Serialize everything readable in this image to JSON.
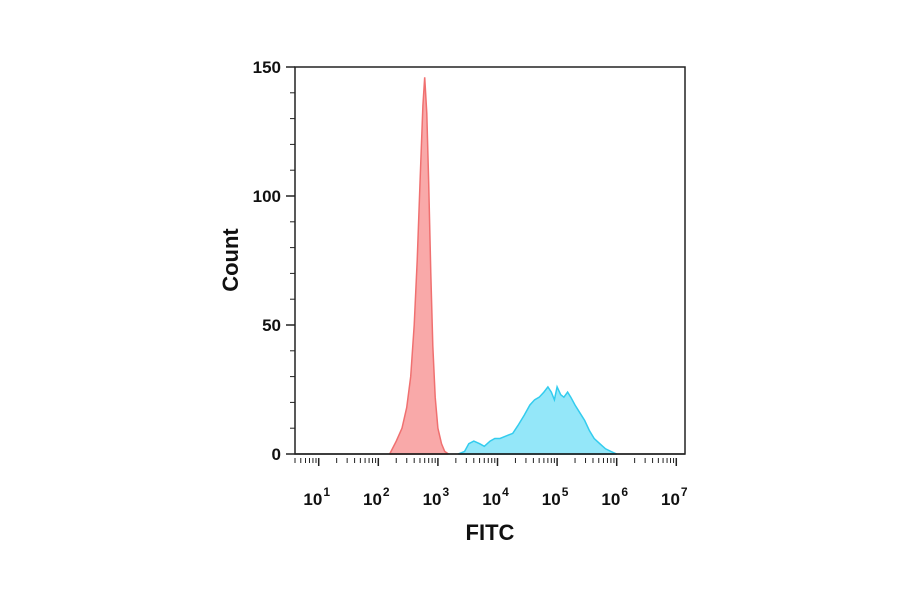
{
  "chart_data": {
    "type": "area",
    "title": "",
    "xlabel": "FITC",
    "ylabel": "Count",
    "x_scale": "log",
    "xlim": [
      4,
      14000000
    ],
    "ylim": [
      0,
      150
    ],
    "grid": false,
    "x_tick_labels": [
      {
        "base": "10",
        "exp": "1",
        "value": 10
      },
      {
        "base": "10",
        "exp": "2",
        "value": 100
      },
      {
        "base": "10",
        "exp": "3",
        "value": 1000
      },
      {
        "base": "10",
        "exp": "4",
        "value": 10000
      },
      {
        "base": "10",
        "exp": "5",
        "value": 100000
      },
      {
        "base": "10",
        "exp": "6",
        "value": 1000000
      },
      {
        "base": "10",
        "exp": "7",
        "value": 10000000
      }
    ],
    "y_ticks": [
      0,
      50,
      100,
      150
    ],
    "y_tick_labels": [
      "0",
      "50",
      "100",
      "150"
    ],
    "series": [
      {
        "color": "#f07070",
        "fill": "#f8a0a0",
        "points": [
          [
            155,
            0
          ],
          [
            200,
            5
          ],
          [
            250,
            10
          ],
          [
            300,
            18
          ],
          [
            350,
            30
          ],
          [
            400,
            50
          ],
          [
            450,
            75
          ],
          [
            500,
            105
          ],
          [
            560,
            135
          ],
          [
            600,
            146
          ],
          [
            650,
            132
          ],
          [
            700,
            105
          ],
          [
            760,
            70
          ],
          [
            820,
            42
          ],
          [
            900,
            22
          ],
          [
            1000,
            10
          ],
          [
            1150,
            4
          ],
          [
            1300,
            1
          ],
          [
            1500,
            0
          ]
        ]
      },
      {
        "color": "#33ccee",
        "fill": "#88e4f8",
        "points": [
          [
            2200,
            0
          ],
          [
            2800,
            1
          ],
          [
            3300,
            4
          ],
          [
            4000,
            5
          ],
          [
            5000,
            4
          ],
          [
            6000,
            3
          ],
          [
            7500,
            5
          ],
          [
            9000,
            6
          ],
          [
            11000,
            6
          ],
          [
            14000,
            7
          ],
          [
            18000,
            8
          ],
          [
            22000,
            11
          ],
          [
            28000,
            15
          ],
          [
            35000,
            19
          ],
          [
            42000,
            21
          ],
          [
            50000,
            22
          ],
          [
            60000,
            24
          ],
          [
            70000,
            26
          ],
          [
            80000,
            24
          ],
          [
            90000,
            21
          ],
          [
            100000,
            26
          ],
          [
            115000,
            23
          ],
          [
            130000,
            22
          ],
          [
            150000,
            24
          ],
          [
            170000,
            22
          ],
          [
            200000,
            19
          ],
          [
            240000,
            16
          ],
          [
            290000,
            13
          ],
          [
            350000,
            9
          ],
          [
            420000,
            6
          ],
          [
            520000,
            4
          ],
          [
            650000,
            2
          ],
          [
            800000,
            1
          ],
          [
            1000000,
            0
          ]
        ]
      }
    ]
  }
}
